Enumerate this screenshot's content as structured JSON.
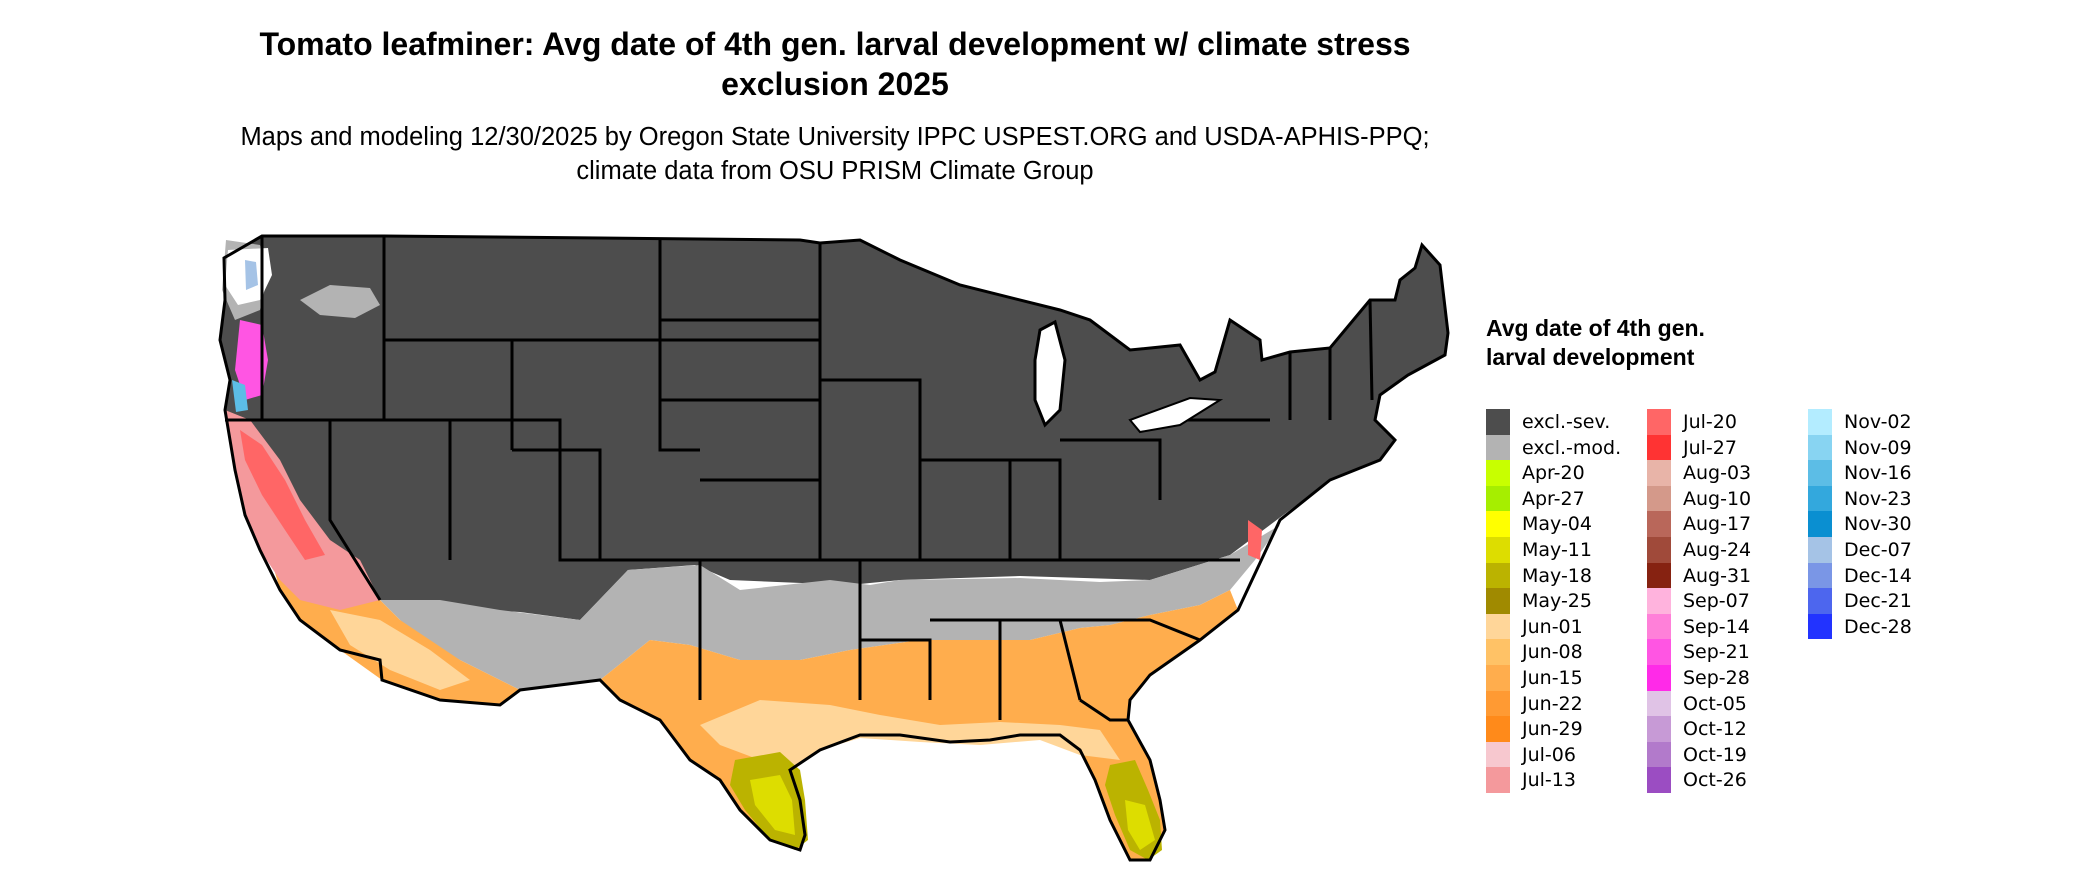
{
  "title": "Tomato leafminer: Avg date of 4th gen. larval development w/ climate stress exclusion 2025",
  "subtitle": "Maps and modeling 12/30/2025 by Oregon State University IPPC USPEST.ORG and USDA-APHIS-PPQ; climate data from OSU PRISM Climate Group",
  "legend": {
    "title": "Avg date of 4th gen. larval development",
    "columns": [
      [
        {
          "label": "excl.-sev.",
          "color": "#4d4d4d"
        },
        {
          "label": "excl.-mod.",
          "color": "#b3b3b3"
        },
        {
          "label": "Apr-20",
          "color": "#c8ff00"
        },
        {
          "label": "Apr-27",
          "color": "#a6ee00"
        },
        {
          "label": "May-04",
          "color": "#ffff00"
        },
        {
          "label": "May-11",
          "color": "#dddd00"
        },
        {
          "label": "May-18",
          "color": "#bbb300"
        },
        {
          "label": "May-25",
          "color": "#a08a00"
        },
        {
          "label": "Jun-01",
          "color": "#ffd699"
        },
        {
          "label": "Jun-08",
          "color": "#ffc266"
        },
        {
          "label": "Jun-15",
          "color": "#ffad4d"
        },
        {
          "label": "Jun-22",
          "color": "#ff9a33"
        },
        {
          "label": "Jun-29",
          "color": "#ff8a1a"
        },
        {
          "label": "Jul-06",
          "color": "#f7c8cf"
        },
        {
          "label": "Jul-13",
          "color": "#f4999c"
        }
      ],
      [
        {
          "label": "Jul-20",
          "color": "#ff6666"
        },
        {
          "label": "Jul-27",
          "color": "#ff3333"
        },
        {
          "label": "Aug-03",
          "color": "#e8b4a8"
        },
        {
          "label": "Aug-10",
          "color": "#d4998a"
        },
        {
          "label": "Aug-17",
          "color": "#b9675a"
        },
        {
          "label": "Aug-24",
          "color": "#a04a3a"
        },
        {
          "label": "Aug-31",
          "color": "#862211"
        },
        {
          "label": "Sep-07",
          "color": "#ffb3dd"
        },
        {
          "label": "Sep-14",
          "color": "#ff80d9"
        },
        {
          "label": "Sep-21",
          "color": "#ff55e3"
        },
        {
          "label": "Sep-28",
          "color": "#ff2ae8"
        },
        {
          "label": "Oct-05",
          "color": "#e0c3e6"
        },
        {
          "label": "Oct-12",
          "color": "#c79ad6"
        },
        {
          "label": "Oct-19",
          "color": "#b27acb"
        },
        {
          "label": "Oct-26",
          "color": "#9b4dc2"
        }
      ],
      [
        {
          "label": "Nov-02",
          "color": "#b3ecff"
        },
        {
          "label": "Nov-09",
          "color": "#88d4f2"
        },
        {
          "label": "Nov-16",
          "color": "#5cbde6"
        },
        {
          "label": "Nov-23",
          "color": "#33a8dd"
        },
        {
          "label": "Nov-30",
          "color": "#0a8fd1"
        },
        {
          "label": "Dec-07",
          "color": "#a5c3e6"
        },
        {
          "label": "Dec-14",
          "color": "#7a96e6"
        },
        {
          "label": "Dec-21",
          "color": "#4d66ee"
        },
        {
          "label": "Dec-28",
          "color": "#2233ff"
        }
      ]
    ]
  }
}
